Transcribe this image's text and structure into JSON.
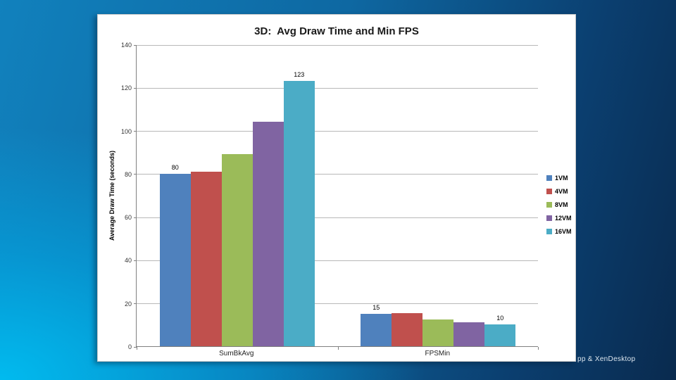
{
  "footer": {
    "partial_glyph": "g",
    "visible_text": "pp & XenDesktop",
    "text_color": "#dce6ee"
  },
  "background": {
    "top_left": "#1181bd",
    "bottom_left_glow": "#00bef2",
    "right_dark": "#092a4e",
    "panel": "#ffffff"
  },
  "chart_data": {
    "type": "bar",
    "title": "3D:  Avg Draw Time and Min FPS",
    "ylabel": "Average Draw Time (seconds)",
    "xlabel": "",
    "categories": [
      "SumBkAvg",
      "FPSMin"
    ],
    "ylim": [
      0,
      140
    ],
    "ytick_step": 20,
    "grid": true,
    "legend_position": "right",
    "gridline_color": "#b8b8b8",
    "axis_color": "#808080",
    "series": [
      {
        "name": "1VM",
        "color": "#4F81BD",
        "values": [
          80,
          15
        ],
        "labels": [
          "80",
          "15"
        ]
      },
      {
        "name": "4VM",
        "color": "#C0504D",
        "values": [
          81,
          15.5
        ],
        "labels": [
          "",
          ""
        ]
      },
      {
        "name": "8VM",
        "color": "#9BBB59",
        "values": [
          89,
          12.5
        ],
        "labels": [
          "",
          ""
        ]
      },
      {
        "name": "12VM",
        "color": "#8064A2",
        "values": [
          104,
          11
        ],
        "labels": [
          "",
          ""
        ]
      },
      {
        "name": "16VM",
        "color": "#4BACC6",
        "values": [
          123,
          10
        ],
        "labels": [
          "123",
          "10"
        ]
      }
    ]
  }
}
